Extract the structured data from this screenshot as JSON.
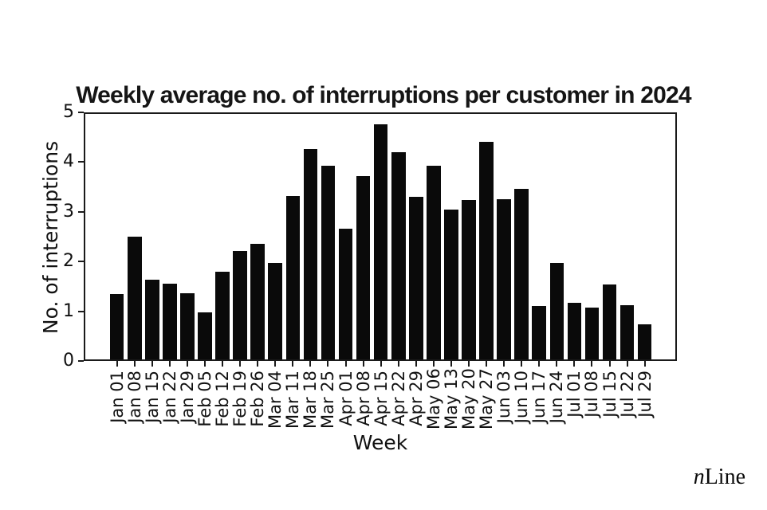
{
  "chart_data": {
    "type": "bar",
    "title": "Weekly average no. of interruptions per customer in 2024",
    "xlabel": "Week",
    "ylabel": "No. of interruptions",
    "ylim": [
      0,
      5
    ],
    "yticks": [
      "0",
      "1",
      "2",
      "3",
      "4",
      "5"
    ],
    "grid": false,
    "legend": false,
    "bar_color": "#0a0a0a",
    "axis_color": "#1a1a1a",
    "categories": [
      "Jan 01",
      "Jan 08",
      "Jan 15",
      "Jan 22",
      "Jan 29",
      "Feb 05",
      "Feb 12",
      "Feb 19",
      "Feb 26",
      "Mar 04",
      "Mar 11",
      "Mar 18",
      "Mar 25",
      "Apr 01",
      "Apr 08",
      "Apr 15",
      "Apr 22",
      "Apr 29",
      "May 06",
      "May 13",
      "May 20",
      "May 27",
      "Jun 03",
      "Jun 10",
      "Jun 17",
      "Jun 24",
      "Jul 01",
      "Jul 08",
      "Jul 15",
      "Jul 22",
      "Jul 29"
    ],
    "values": [
      1.33,
      2.5,
      1.63,
      1.55,
      1.34,
      0.96,
      1.78,
      2.2,
      2.36,
      1.96,
      3.33,
      4.28,
      3.95,
      2.66,
      3.73,
      4.79,
      4.22,
      3.32,
      3.94,
      3.06,
      3.25,
      4.43,
      3.27,
      3.48,
      1.09,
      1.97,
      1.15,
      1.06,
      1.52,
      1.11,
      0.71
    ]
  },
  "branding": {
    "logo_italic": "n",
    "logo_rest": "Line"
  }
}
